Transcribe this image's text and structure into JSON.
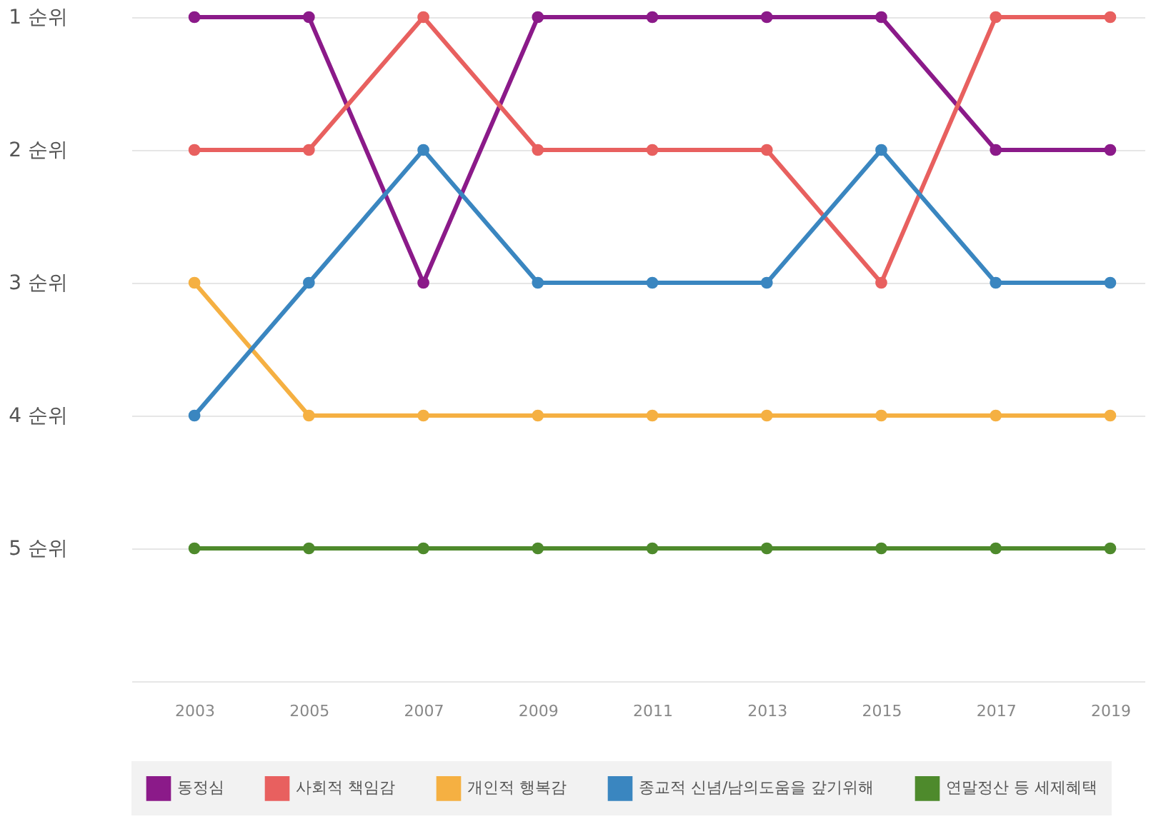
{
  "chart_data": {
    "type": "line",
    "categories": [
      "2003",
      "2005",
      "2007",
      "2009",
      "2011",
      "2013",
      "2015",
      "2017",
      "2019"
    ],
    "series": [
      {
        "name": "동정심",
        "color": "#8b1a89",
        "values": [
          1,
          1,
          3,
          1,
          1,
          1,
          1,
          2,
          2
        ]
      },
      {
        "name": "사회적 책임감",
        "color": "#e8605f",
        "values": [
          2,
          2,
          1,
          2,
          2,
          2,
          3,
          1,
          1
        ]
      },
      {
        "name": "개인적 행복감",
        "color": "#f5b042",
        "values": [
          3,
          4,
          4,
          4,
          4,
          4,
          4,
          4,
          4
        ]
      },
      {
        "name": "종교적 신념/남의도움을 갚기위해",
        "color": "#3a86c0",
        "values": [
          4,
          3,
          2,
          3,
          3,
          3,
          2,
          3,
          3
        ]
      },
      {
        "name": "연말정산 등 세제혜택",
        "color": "#4e8a2c",
        "values": [
          5,
          5,
          5,
          5,
          5,
          5,
          5,
          5,
          5
        ]
      }
    ],
    "ylim": [
      6,
      1
    ],
    "yticks": [
      {
        "value": 1,
        "label": "1 순위"
      },
      {
        "value": 2,
        "label": "2 순위"
      },
      {
        "value": 3,
        "label": "3 순위"
      },
      {
        "value": 4,
        "label": "4 순위"
      },
      {
        "value": 5,
        "label": "5 순위"
      }
    ],
    "grid": "y",
    "legend": "bottom",
    "marker": "circle",
    "line_style": "solid"
  }
}
